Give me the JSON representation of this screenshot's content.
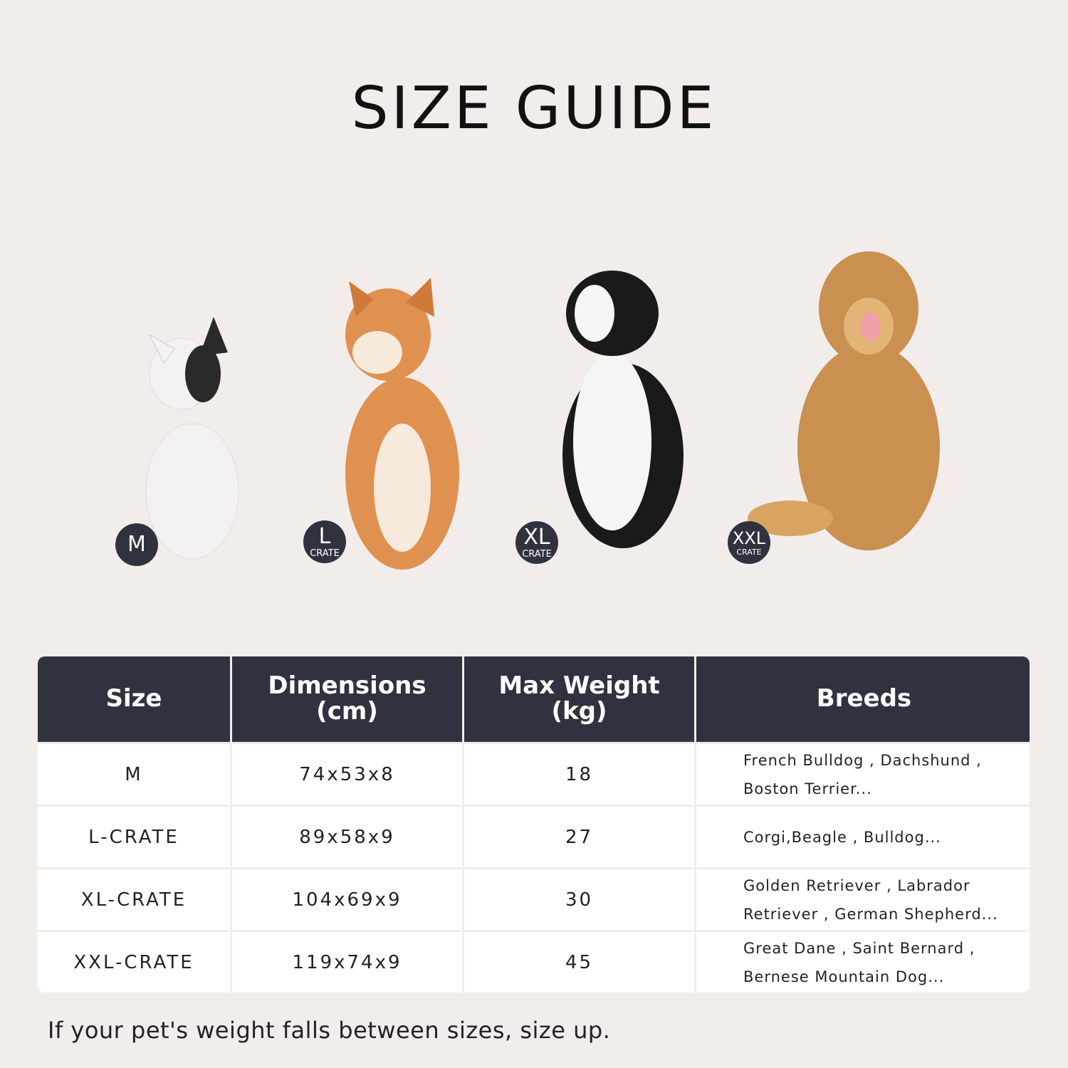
{
  "title": "SIZE GUIDE",
  "dogs": [
    {
      "badge_main": "M",
      "badge_sub": "",
      "color": "#f4f2f0",
      "accent": "#2a2a2a"
    },
    {
      "badge_main": "L",
      "badge_sub": "CRATE",
      "color": "#e09150",
      "accent": "#f7eadc"
    },
    {
      "badge_main": "XL",
      "badge_sub": "CRATE",
      "color": "#1a1a1a",
      "accent": "#f5f5f3"
    },
    {
      "badge_main": "XXL",
      "badge_sub": "CRATE",
      "color": "#c99050",
      "accent": "#e2b577"
    }
  ],
  "table": {
    "headers": {
      "size": "Size",
      "dimensions": "Dimensions (cm)",
      "weight": "Max Weight (kg)",
      "breeds": "Breeds"
    },
    "rows": [
      {
        "size": "M",
        "dimensions": "74x53x8",
        "weight": "18",
        "breeds": "French Bulldog , Dachshund , Boston Terrier..."
      },
      {
        "size": "L-CRATE",
        "dimensions": "89x58x9",
        "weight": "27",
        "breeds": "Corgi,Beagle , Bulldog..."
      },
      {
        "size": "XL-CRATE",
        "dimensions": "104x69x9",
        "weight": "30",
        "breeds": "Golden Retriever , Labrador Retriever , German Shepherd..."
      },
      {
        "size": "XXL-CRATE",
        "dimensions": "119x74x9",
        "weight": "45",
        "breeds": "Great Dane , Saint Bernard , Bernese Mountain Dog..."
      }
    ]
  },
  "colors": {
    "background": "#f2edeb",
    "header": "#30323f"
  },
  "note": "If your pet's weight falls between sizes, size up."
}
